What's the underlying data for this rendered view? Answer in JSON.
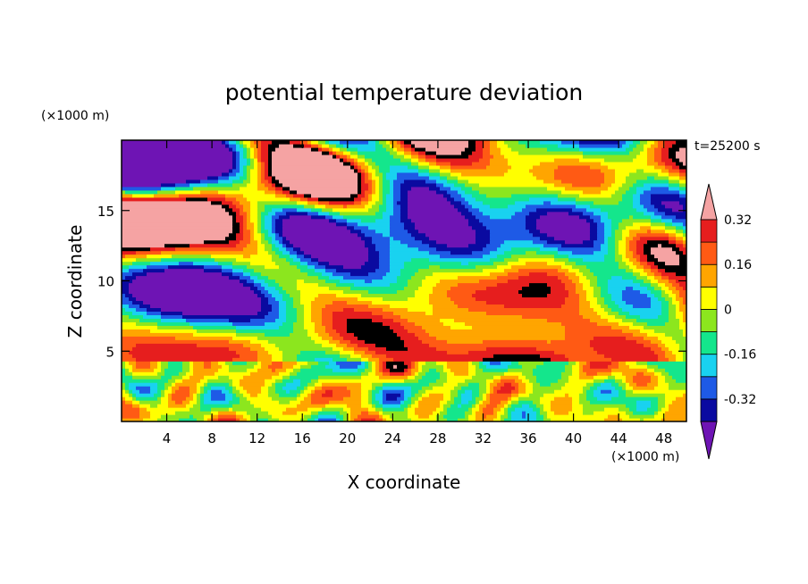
{
  "chart_data": {
    "type": "heatmap",
    "title": "potential temperature deviation",
    "xlabel": "X coordinate",
    "ylabel": "Z coordinate",
    "x_unit": "(×1000 m)",
    "y_unit": "(×1000 m)",
    "time_label": "t=25200 s",
    "xlim": [
      0,
      50
    ],
    "ylim": [
      0,
      20
    ],
    "x_ticks": [
      4,
      8,
      12,
      16,
      20,
      24,
      28,
      32,
      36,
      40,
      44,
      48
    ],
    "y_ticks": [
      5,
      10,
      15
    ],
    "colorbar": {
      "levels": [
        -0.4,
        -0.32,
        -0.24,
        -0.16,
        -0.08,
        0,
        0.08,
        0.16,
        0.24,
        0.32,
        0.4
      ],
      "tick_labels": [
        "-0.32",
        "-0.16",
        "0",
        "0.16",
        "0.32"
      ],
      "tick_values": [
        -0.32,
        -0.16,
        0,
        0.16,
        0.32
      ],
      "colors": [
        "#0a0aa0",
        "#1e5ae6",
        "#19d2f0",
        "#14e68c",
        "#8ce61e",
        "#ffff00",
        "#ffa500",
        "#ff5a14",
        "#e61e1e"
      ],
      "under_color": "#6e14b4",
      "over_color": "#f5a3a3",
      "extend": "both"
    }
  }
}
